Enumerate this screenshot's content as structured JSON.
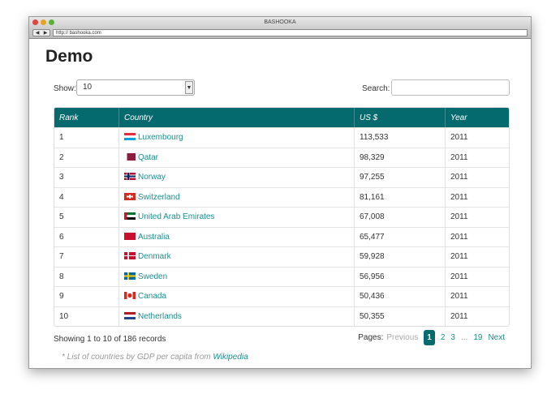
{
  "browser": {
    "title": "BASHOOKA",
    "url": "http:// bashooka.com",
    "back": "◀",
    "forward": "▶"
  },
  "page": {
    "title": "Demo",
    "show_label": "Show:",
    "page_size": "10",
    "search_label": "Search:",
    "search_value": ""
  },
  "table": {
    "headers": [
      "Rank",
      "Country",
      "US $",
      "Year"
    ],
    "rows": [
      {
        "rank": "1",
        "country": "Luxembourg",
        "flag": "luxembourg",
        "usd": "113,533",
        "year": "2011"
      },
      {
        "rank": "2",
        "country": "Qatar",
        "flag": "qatar",
        "usd": "98,329",
        "year": "2011"
      },
      {
        "rank": "3",
        "country": "Norway",
        "flag": "norway",
        "usd": "97,255",
        "year": "2011"
      },
      {
        "rank": "4",
        "country": "Switzerland",
        "flag": "switzerland",
        "usd": "81,161",
        "year": "2011"
      },
      {
        "rank": "5",
        "country": "United Arab Emirates",
        "flag": "uae",
        "usd": "67,008",
        "year": "2011"
      },
      {
        "rank": "6",
        "country": "Australia",
        "flag": "australia",
        "usd": "65,477",
        "year": "2011"
      },
      {
        "rank": "7",
        "country": "Denmark",
        "flag": "denmark",
        "usd": "59,928",
        "year": "2011"
      },
      {
        "rank": "8",
        "country": "Sweden",
        "flag": "sweden",
        "usd": "56,956",
        "year": "2011"
      },
      {
        "rank": "9",
        "country": "Canada",
        "flag": "canada",
        "usd": "50,436",
        "year": "2011"
      },
      {
        "rank": "10",
        "country": "Netherlands",
        "flag": "netherlands",
        "usd": "50,355",
        "year": "2011"
      }
    ]
  },
  "footer": {
    "summary": "Showing 1 to 10 of 186 records",
    "pages_label": "Pages:",
    "previous": "Previous",
    "pages": [
      "1",
      "2",
      "3",
      "...",
      "19"
    ],
    "next": "Next",
    "note": "* List of countries by GDP per capita from ",
    "note_link": "Wikipedia"
  },
  "colors": {
    "accent": "#046a6e",
    "link": "#17908e"
  }
}
